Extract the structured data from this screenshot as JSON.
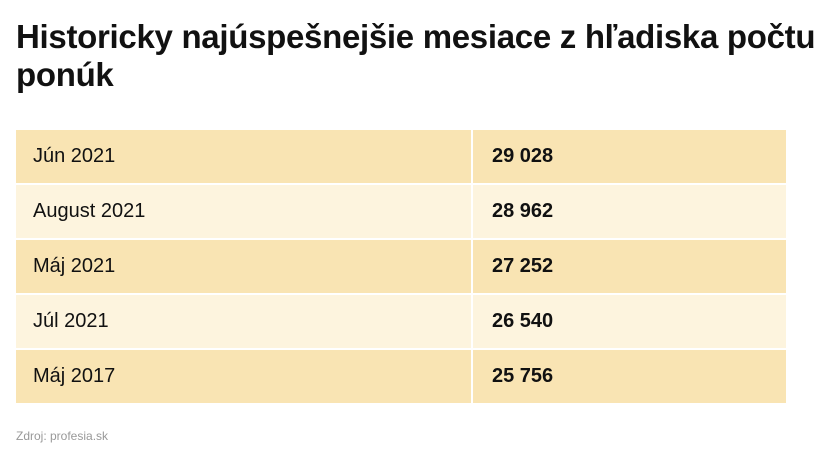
{
  "header": {
    "title": "Historicky najúspešnejšie mesiace z hľadiska počtu ponúk"
  },
  "table": {
    "rows": [
      [
        "Jún 2021",
        "29 028"
      ],
      [
        "August 2021",
        "28 962"
      ],
      [
        "Máj 2021",
        "27 252"
      ],
      [
        "Júl 2021",
        "26 540"
      ],
      [
        "Máj 2017",
        "25 756"
      ]
    ]
  },
  "footer": {
    "source": "Zdroj: profesia.sk"
  }
}
